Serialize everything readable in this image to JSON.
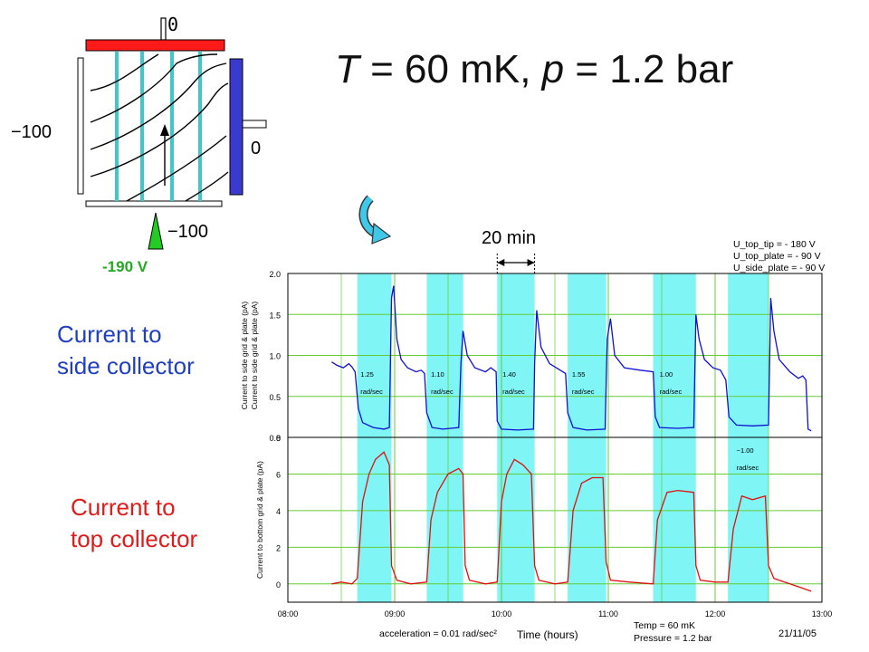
{
  "title": {
    "prefix_var": "T",
    "eq1": " = 60 mK, ",
    "var2": "p",
    "eq2": " = 1.2 bar"
  },
  "labels": {
    "side_collector": [
      "Current to",
      "side collector"
    ],
    "top_collector": [
      "Current to",
      "top collector"
    ],
    "duration": "20 min"
  },
  "schematic": {
    "top_value": "0",
    "left_value": "−100",
    "right_value": "0",
    "bottom_value": "−100",
    "tip_value": "-190 V",
    "colors": {
      "top_plate": "#ff1a1a",
      "side_plate": "#3a3ad0",
      "grid": "#40c8c8",
      "tip": "#22cc22"
    }
  },
  "annotations": {
    "voltages": [
      "U_top_tip = - 180 V",
      "U_top_plate = - 90 V",
      "U_side_plate = - 90 V"
    ],
    "acceleration": "acceleration = 0.01 rad/sec²",
    "temp": "Temp = 60 mK",
    "pressure": "Pressure = 1.2 bar",
    "date": "21/11/05"
  },
  "chart_data": {
    "type": "line",
    "xlabel": "Time (hours)",
    "x_ticks": [
      "08:00",
      "09:00",
      "10:00",
      "11:00",
      "12:00",
      "13:00"
    ],
    "xlim": [
      8.0,
      13.0
    ],
    "panels": [
      {
        "ylabel_lines": [
          "Current to side grid & plate (pA)",
          "Current to side grid & plate (pA)"
        ],
        "ylim": [
          0,
          2.0
        ],
        "y_ticks": [
          "2.0",
          "1.5",
          "1.0",
          "0.5",
          "0.0"
        ],
        "color": "#1010d0",
        "series": [
          [
            8.41,
            0.92
          ],
          [
            8.46,
            0.88
          ],
          [
            8.52,
            0.85
          ],
          [
            8.57,
            0.9
          ],
          [
            8.6,
            0.86
          ],
          [
            8.63,
            0.8
          ],
          [
            8.66,
            0.35
          ],
          [
            8.7,
            0.18
          ],
          [
            8.8,
            0.12
          ],
          [
            8.9,
            0.1
          ],
          [
            8.95,
            0.12
          ],
          [
            8.97,
            1.7
          ],
          [
            8.99,
            1.85
          ],
          [
            9.02,
            1.2
          ],
          [
            9.06,
            0.95
          ],
          [
            9.12,
            0.85
          ],
          [
            9.2,
            0.8
          ],
          [
            9.25,
            0.82
          ],
          [
            9.28,
            0.78
          ],
          [
            9.3,
            0.3
          ],
          [
            9.35,
            0.12
          ],
          [
            9.45,
            0.1
          ],
          [
            9.6,
            0.12
          ],
          [
            9.62,
            0.9
          ],
          [
            9.64,
            1.3
          ],
          [
            9.68,
            1.0
          ],
          [
            9.75,
            0.85
          ],
          [
            9.85,
            0.8
          ],
          [
            9.9,
            0.85
          ],
          [
            9.95,
            0.8
          ],
          [
            9.96,
            0.2
          ],
          [
            10.0,
            0.1
          ],
          [
            10.15,
            0.09
          ],
          [
            10.3,
            0.1
          ],
          [
            10.31,
            0.9
          ],
          [
            10.33,
            1.55
          ],
          [
            10.37,
            1.1
          ],
          [
            10.45,
            0.9
          ],
          [
            10.55,
            0.82
          ],
          [
            10.6,
            0.78
          ],
          [
            10.62,
            0.3
          ],
          [
            10.67,
            0.12
          ],
          [
            10.8,
            0.09
          ],
          [
            10.97,
            0.1
          ],
          [
            10.99,
            1.2
          ],
          [
            11.02,
            1.45
          ],
          [
            11.06,
            1.0
          ],
          [
            11.15,
            0.85
          ],
          [
            11.3,
            0.82
          ],
          [
            11.42,
            0.8
          ],
          [
            11.44,
            0.25
          ],
          [
            11.48,
            0.12
          ],
          [
            11.65,
            0.11
          ],
          [
            11.8,
            0.12
          ],
          [
            11.82,
            1.5
          ],
          [
            11.85,
            1.2
          ],
          [
            11.9,
            0.95
          ],
          [
            11.98,
            0.85
          ],
          [
            12.05,
            0.82
          ],
          [
            12.1,
            0.7
          ],
          [
            12.13,
            0.25
          ],
          [
            12.2,
            0.15
          ],
          [
            12.35,
            0.14
          ],
          [
            12.5,
            0.15
          ],
          [
            12.52,
            1.7
          ],
          [
            12.55,
            1.3
          ],
          [
            12.6,
            0.95
          ],
          [
            12.7,
            0.8
          ],
          [
            12.78,
            0.72
          ],
          [
            12.82,
            0.75
          ],
          [
            12.85,
            0.7
          ],
          [
            12.87,
            0.1
          ],
          [
            12.9,
            0.08
          ]
        ]
      },
      {
        "ylabel_lines": [
          "Current to bottom grid & plate (pA)"
        ],
        "ylim": [
          -1,
          8
        ],
        "y_ticks": [
          "8",
          "6",
          "4",
          "2",
          "0"
        ],
        "color": "#e01010",
        "series": [
          [
            8.41,
            0.0
          ],
          [
            8.5,
            0.1
          ],
          [
            8.6,
            0.0
          ],
          [
            8.65,
            0.3
          ],
          [
            8.7,
            4.5
          ],
          [
            8.76,
            6.0
          ],
          [
            8.82,
            6.8
          ],
          [
            8.9,
            7.2
          ],
          [
            8.95,
            6.5
          ],
          [
            8.97,
            1.0
          ],
          [
            9.02,
            0.2
          ],
          [
            9.15,
            0.0
          ],
          [
            9.3,
            0.1
          ],
          [
            9.34,
            3.5
          ],
          [
            9.4,
            5.0
          ],
          [
            9.5,
            6.0
          ],
          [
            9.6,
            6.3
          ],
          [
            9.64,
            6.0
          ],
          [
            9.66,
            1.0
          ],
          [
            9.7,
            0.2
          ],
          [
            9.85,
            0.0
          ],
          [
            9.96,
            0.1
          ],
          [
            10.0,
            4.5
          ],
          [
            10.05,
            6.0
          ],
          [
            10.12,
            6.8
          ],
          [
            10.2,
            6.5
          ],
          [
            10.28,
            6.0
          ],
          [
            10.31,
            1.0
          ],
          [
            10.35,
            0.2
          ],
          [
            10.5,
            0.0
          ],
          [
            10.62,
            0.1
          ],
          [
            10.67,
            4.0
          ],
          [
            10.75,
            5.5
          ],
          [
            10.85,
            5.8
          ],
          [
            10.95,
            5.8
          ],
          [
            10.98,
            1.2
          ],
          [
            11.02,
            0.2
          ],
          [
            11.2,
            0.1
          ],
          [
            11.42,
            0.0
          ],
          [
            11.46,
            3.5
          ],
          [
            11.55,
            5.0
          ],
          [
            11.65,
            5.1
          ],
          [
            11.8,
            5.0
          ],
          [
            11.82,
            1.0
          ],
          [
            11.86,
            0.2
          ],
          [
            12.0,
            0.1
          ],
          [
            12.12,
            0.1
          ],
          [
            12.17,
            3.0
          ],
          [
            12.25,
            4.8
          ],
          [
            12.35,
            4.6
          ],
          [
            12.47,
            4.8
          ],
          [
            12.5,
            1.0
          ],
          [
            12.55,
            0.3
          ],
          [
            12.7,
            0.0
          ],
          [
            12.8,
            -0.2
          ],
          [
            12.9,
            -0.4
          ]
        ]
      }
    ],
    "highlight_intervals": [
      [
        8.65,
        8.97
      ],
      [
        9.3,
        9.64
      ],
      [
        9.96,
        10.31
      ],
      [
        10.62,
        10.98
      ],
      [
        11.42,
        11.82
      ],
      [
        12.12,
        12.5
      ]
    ],
    "rate_labels": [
      {
        "x": 8.68,
        "text": "1.25",
        "unit": "rad/sec"
      },
      {
        "x": 9.34,
        "text": "1.10",
        "unit": "rad/sec"
      },
      {
        "x": 10.01,
        "text": "1.40",
        "unit": "rad/sec"
      },
      {
        "x": 10.66,
        "text": "1.55",
        "unit": "rad/sec"
      },
      {
        "x": 11.48,
        "text": "1.00",
        "unit": "rad/sec"
      },
      {
        "x": 12.2,
        "text": "−1.00",
        "unit": "rad/sec"
      }
    ],
    "grid": true
  }
}
